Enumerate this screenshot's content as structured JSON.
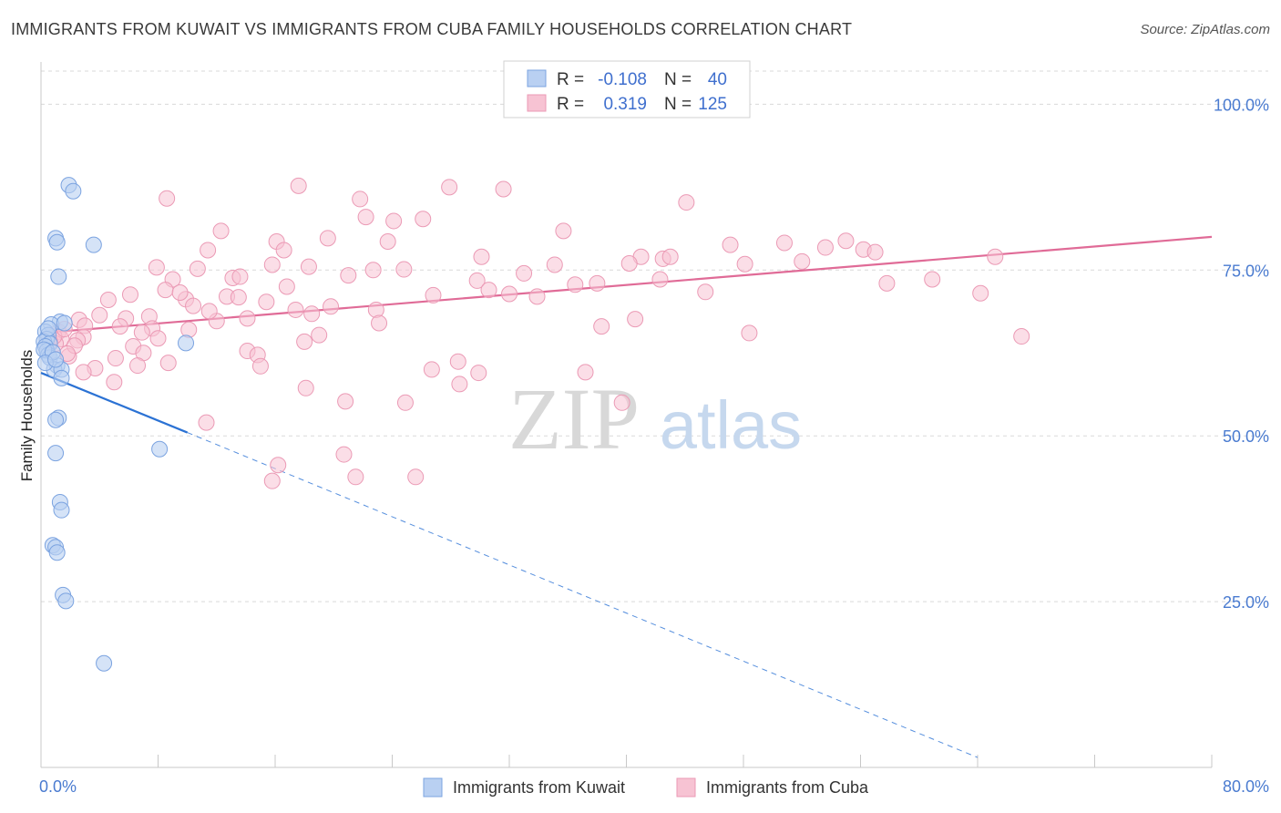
{
  "header": {
    "title": "IMMIGRANTS FROM KUWAIT VS IMMIGRANTS FROM CUBA FAMILY HOUSEHOLDS CORRELATION CHART",
    "source": "Source: ZipAtlas.com"
  },
  "watermark": {
    "zip": "ZIP",
    "atlas": "atlas"
  },
  "colors": {
    "kuwait_fill": "#b9d0f2",
    "kuwait_stroke": "#7ba3e0",
    "kuwait_line": "#2b72d4",
    "cuba_fill": "#f7c3d3",
    "cuba_stroke": "#eb9ab5",
    "cuba_line": "#e06b97",
    "axis_text": "#4a7bd0",
    "grid": "#d9d9d9"
  },
  "stats_legend": {
    "rows": [
      {
        "r_label": "R =",
        "r_value": "-0.108",
        "n_label": "N =",
        "n_value": "40",
        "series": "kuwait"
      },
      {
        "r_label": "R =",
        "r_value": "0.319",
        "n_label": "N =",
        "n_value": "125",
        "series": "cuba"
      }
    ]
  },
  "chart_data": {
    "type": "scatter",
    "title": "IMMIGRANTS FROM KUWAIT VS IMMIGRANTS FROM CUBA FAMILY HOUSEHOLDS CORRELATION CHART",
    "xlabel": "",
    "ylabel": "Family Households",
    "xlim": [
      0,
      80
    ],
    "ylim": [
      0,
      105
    ],
    "x_tick_labels": [
      "0.0%",
      "80.0%"
    ],
    "y_ticks": [
      25,
      50,
      75,
      100
    ],
    "y_tick_labels": [
      "25.0%",
      "50.0%",
      "75.0%",
      "100.0%"
    ],
    "legend": [
      "Immigrants from Kuwait",
      "Immigrants from Cuba"
    ],
    "series": [
      {
        "name": "Immigrants from Kuwait",
        "r": -0.108,
        "n": 40,
        "trend": {
          "x0": 0,
          "y0": 59.5,
          "x1_solid": 10,
          "y1_solid": 50.5,
          "x1_dash": 64,
          "y1_dash": 1.5
        },
        "points": [
          [
            1.9,
            87.8
          ],
          [
            2.2,
            86.9
          ],
          [
            1.0,
            79.8
          ],
          [
            1.1,
            79.2
          ],
          [
            3.6,
            78.8
          ],
          [
            1.2,
            74.0
          ],
          [
            1.3,
            67.2
          ],
          [
            0.7,
            66.8
          ],
          [
            0.3,
            65.7
          ],
          [
            0.5,
            65.2
          ],
          [
            0.4,
            64.6
          ],
          [
            0.2,
            64.2
          ],
          [
            0.6,
            63.9
          ],
          [
            0.3,
            63.5
          ],
          [
            9.9,
            64.0
          ],
          [
            0.4,
            62.8
          ],
          [
            0.5,
            62.2
          ],
          [
            0.6,
            61.8
          ],
          [
            1.1,
            60.6
          ],
          [
            0.9,
            60.0
          ],
          [
            1.4,
            60.0
          ],
          [
            1.4,
            58.7
          ],
          [
            1.2,
            52.7
          ],
          [
            1.0,
            52.4
          ],
          [
            8.1,
            48.0
          ],
          [
            1.0,
            47.4
          ],
          [
            1.3,
            40.0
          ],
          [
            1.4,
            38.8
          ],
          [
            0.8,
            33.5
          ],
          [
            1.0,
            33.2
          ],
          [
            1.1,
            32.4
          ],
          [
            1.5,
            26.0
          ],
          [
            1.7,
            25.1
          ],
          [
            4.3,
            15.7
          ],
          [
            0.2,
            63.0
          ],
          [
            0.8,
            62.6
          ],
          [
            1.6,
            67.0
          ],
          [
            0.5,
            66.2
          ],
          [
            0.3,
            61.0
          ],
          [
            1.0,
            61.5
          ]
        ]
      },
      {
        "name": "Immigrants from Cuba",
        "r": 0.319,
        "n": 125,
        "trend": {
          "x0": 0,
          "y0": 65.5,
          "x1": 80,
          "y1": 80.0
        },
        "points": [
          [
            17.6,
            87.7
          ],
          [
            27.9,
            87.5
          ],
          [
            31.6,
            87.2
          ],
          [
            8.6,
            85.8
          ],
          [
            21.8,
            85.7
          ],
          [
            44.1,
            85.2
          ],
          [
            22.2,
            83.0
          ],
          [
            24.1,
            82.4
          ],
          [
            26.1,
            82.7
          ],
          [
            35.7,
            80.9
          ],
          [
            12.3,
            80.9
          ],
          [
            19.6,
            79.8
          ],
          [
            16.1,
            79.3
          ],
          [
            23.7,
            79.3
          ],
          [
            50.8,
            79.1
          ],
          [
            47.1,
            78.8
          ],
          [
            55.0,
            79.4
          ],
          [
            11.4,
            78.0
          ],
          [
            16.6,
            78.0
          ],
          [
            53.6,
            78.4
          ],
          [
            56.2,
            78.1
          ],
          [
            30.1,
            77.0
          ],
          [
            41.0,
            77.0
          ],
          [
            42.5,
            76.7
          ],
          [
            43.0,
            77.0
          ],
          [
            7.9,
            75.4
          ],
          [
            10.7,
            75.2
          ],
          [
            15.8,
            75.8
          ],
          [
            18.3,
            75.5
          ],
          [
            22.7,
            75.0
          ],
          [
            24.8,
            75.1
          ],
          [
            35.1,
            75.8
          ],
          [
            40.2,
            76.0
          ],
          [
            48.1,
            75.9
          ],
          [
            52.0,
            76.3
          ],
          [
            57.0,
            77.7
          ],
          [
            65.2,
            77.0
          ],
          [
            9.0,
            73.6
          ],
          [
            13.1,
            73.8
          ],
          [
            13.6,
            74.0
          ],
          [
            29.8,
            73.4
          ],
          [
            36.5,
            72.8
          ],
          [
            38.0,
            73.0
          ],
          [
            42.3,
            73.6
          ],
          [
            57.8,
            73.0
          ],
          [
            60.9,
            73.6
          ],
          [
            8.5,
            72.0
          ],
          [
            6.1,
            71.3
          ],
          [
            12.7,
            71.0
          ],
          [
            16.8,
            72.5
          ],
          [
            26.8,
            71.2
          ],
          [
            30.6,
            72.0
          ],
          [
            32.0,
            71.4
          ],
          [
            33.9,
            71.0
          ],
          [
            45.4,
            71.7
          ],
          [
            64.2,
            71.5
          ],
          [
            4.6,
            70.5
          ],
          [
            9.9,
            70.6
          ],
          [
            15.4,
            70.2
          ],
          [
            19.8,
            69.5
          ],
          [
            22.9,
            69.0
          ],
          [
            10.4,
            69.6
          ],
          [
            18.5,
            68.4
          ],
          [
            2.6,
            67.5
          ],
          [
            5.8,
            67.7
          ],
          [
            7.4,
            68.0
          ],
          [
            12.0,
            67.3
          ],
          [
            14.1,
            67.7
          ],
          [
            23.1,
            67.0
          ],
          [
            38.3,
            66.5
          ],
          [
            40.6,
            67.6
          ],
          [
            3.0,
            66.6
          ],
          [
            5.4,
            66.5
          ],
          [
            7.6,
            66.2
          ],
          [
            10.1,
            66.0
          ],
          [
            1.2,
            65.7
          ],
          [
            2.9,
            64.9
          ],
          [
            6.9,
            65.6
          ],
          [
            19.0,
            65.2
          ],
          [
            48.4,
            65.5
          ],
          [
            67.0,
            65.0
          ],
          [
            1.4,
            64.6
          ],
          [
            2.5,
            64.4
          ],
          [
            1.0,
            63.9
          ],
          [
            6.3,
            63.5
          ],
          [
            18.0,
            64.2
          ],
          [
            14.1,
            62.8
          ],
          [
            7.0,
            62.5
          ],
          [
            1.9,
            62.0
          ],
          [
            5.1,
            61.7
          ],
          [
            8.7,
            61.0
          ],
          [
            14.8,
            62.2
          ],
          [
            28.5,
            61.2
          ],
          [
            3.7,
            60.2
          ],
          [
            6.6,
            60.6
          ],
          [
            2.9,
            59.6
          ],
          [
            15.0,
            60.5
          ],
          [
            29.9,
            59.5
          ],
          [
            37.2,
            59.6
          ],
          [
            26.7,
            60.0
          ],
          [
            5.0,
            58.1
          ],
          [
            18.1,
            57.2
          ],
          [
            28.6,
            57.8
          ],
          [
            20.8,
            55.2
          ],
          [
            24.9,
            55.0
          ],
          [
            39.7,
            55.0
          ],
          [
            11.3,
            52.0
          ],
          [
            20.7,
            47.2
          ],
          [
            16.2,
            45.6
          ],
          [
            15.8,
            43.2
          ],
          [
            21.5,
            43.8
          ],
          [
            25.6,
            43.8
          ],
          [
            0.9,
            65.0
          ],
          [
            0.6,
            64.2
          ],
          [
            1.6,
            66.1
          ],
          [
            2.3,
            63.6
          ],
          [
            1.8,
            62.4
          ],
          [
            8.0,
            64.7
          ],
          [
            11.5,
            68.8
          ],
          [
            13.5,
            70.9
          ],
          [
            17.4,
            69.0
          ],
          [
            4.0,
            68.2
          ],
          [
            9.5,
            71.6
          ],
          [
            21.0,
            74.2
          ],
          [
            33.0,
            74.5
          ]
        ]
      }
    ]
  },
  "bottom_legend": {
    "items": [
      {
        "label": "Immigrants from Kuwait",
        "series": "kuwait"
      },
      {
        "label": "Immigrants from Cuba",
        "series": "cuba"
      }
    ]
  }
}
